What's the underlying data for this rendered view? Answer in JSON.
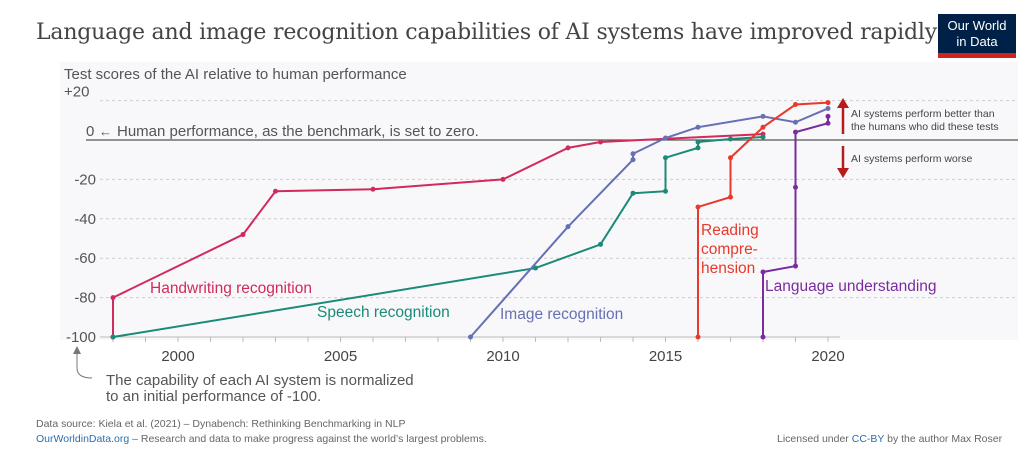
{
  "title": "Language and image recognition capabilities of AI systems have improved rapidly",
  "logo": {
    "line1": "Our World",
    "line2": "in Data"
  },
  "chart_data": {
    "type": "line",
    "ylabel": "Test scores of the AI relative to human performance",
    "xlim": [
      1998,
      2020
    ],
    "ylim": [
      -100,
      20
    ],
    "xticks": [
      "2000",
      "2005",
      "2010",
      "2015",
      "2020"
    ],
    "yticks": [
      "+20",
      "0",
      "-20",
      "-40",
      "-60",
      "-80",
      "-100"
    ],
    "grid": true,
    "zero_annotation": "Human performance, as the benchmark, is set to zero.",
    "bottom_annotation": [
      "The capability of each AI system is normalized",
      "to an initial performance of -100."
    ],
    "better_annotation": [
      "AI systems perform better than",
      "the humans who did these tests"
    ],
    "worse_annotation": "AI systems perform worse",
    "series": [
      {
        "name": "Handwriting recognition",
        "color": "#d12a5c",
        "points": [
          [
            1998,
            -100
          ],
          [
            1998,
            -80
          ],
          [
            2002,
            -48
          ],
          [
            2003,
            -26
          ],
          [
            2006,
            -25
          ],
          [
            2010,
            -20
          ],
          [
            2012,
            -4
          ],
          [
            2013,
            -1
          ],
          [
            2018,
            3
          ]
        ]
      },
      {
        "name": "Speech recognition",
        "color": "#1b8a78",
        "points": [
          [
            1998,
            -100
          ],
          [
            2011,
            -65
          ],
          [
            2013,
            -53
          ],
          [
            2014,
            -27
          ],
          [
            2015,
            -26
          ],
          [
            2015,
            -9
          ],
          [
            2016,
            -4
          ],
          [
            2016,
            -1
          ],
          [
            2017,
            0.5
          ],
          [
            2018,
            1.5
          ]
        ]
      },
      {
        "name": "Image recognition",
        "color": "#6670b3",
        "points": [
          [
            2009,
            -100
          ],
          [
            2012,
            -44
          ],
          [
            2014,
            -10
          ],
          [
            2014,
            -7
          ],
          [
            2015,
            1
          ],
          [
            2016,
            6.5
          ],
          [
            2018,
            12
          ],
          [
            2019,
            9
          ],
          [
            2020,
            16
          ]
        ]
      },
      {
        "name": "Reading comprehension",
        "label_lines": [
          "Reading",
          "compre-",
          "hension"
        ],
        "color": "#e8392b",
        "points": [
          [
            2016,
            -100
          ],
          [
            2016,
            -34
          ],
          [
            2017,
            -29
          ],
          [
            2017,
            -9
          ],
          [
            2018,
            6.5
          ],
          [
            2019,
            18
          ],
          [
            2020,
            19
          ]
        ]
      },
      {
        "name": "Language understanding",
        "color": "#7a2c9e",
        "points": [
          [
            2018,
            -100
          ],
          [
            2018,
            -67
          ],
          [
            2019,
            -64
          ],
          [
            2019,
            -24
          ],
          [
            2019,
            4
          ],
          [
            2020,
            8.5
          ],
          [
            2020,
            12
          ]
        ]
      }
    ]
  },
  "footer": {
    "source": "Data source: Kiela et al. (2021) – Dynabench: Rethinking Benchmarking in NLP",
    "site": "OurWorldinData.org",
    "mission": " – Research and data to make progress against the world’s largest problems.",
    "license_pre": "Licensed under ",
    "license_link": "CC-BY",
    "license_post": " by the author Max Roser"
  }
}
